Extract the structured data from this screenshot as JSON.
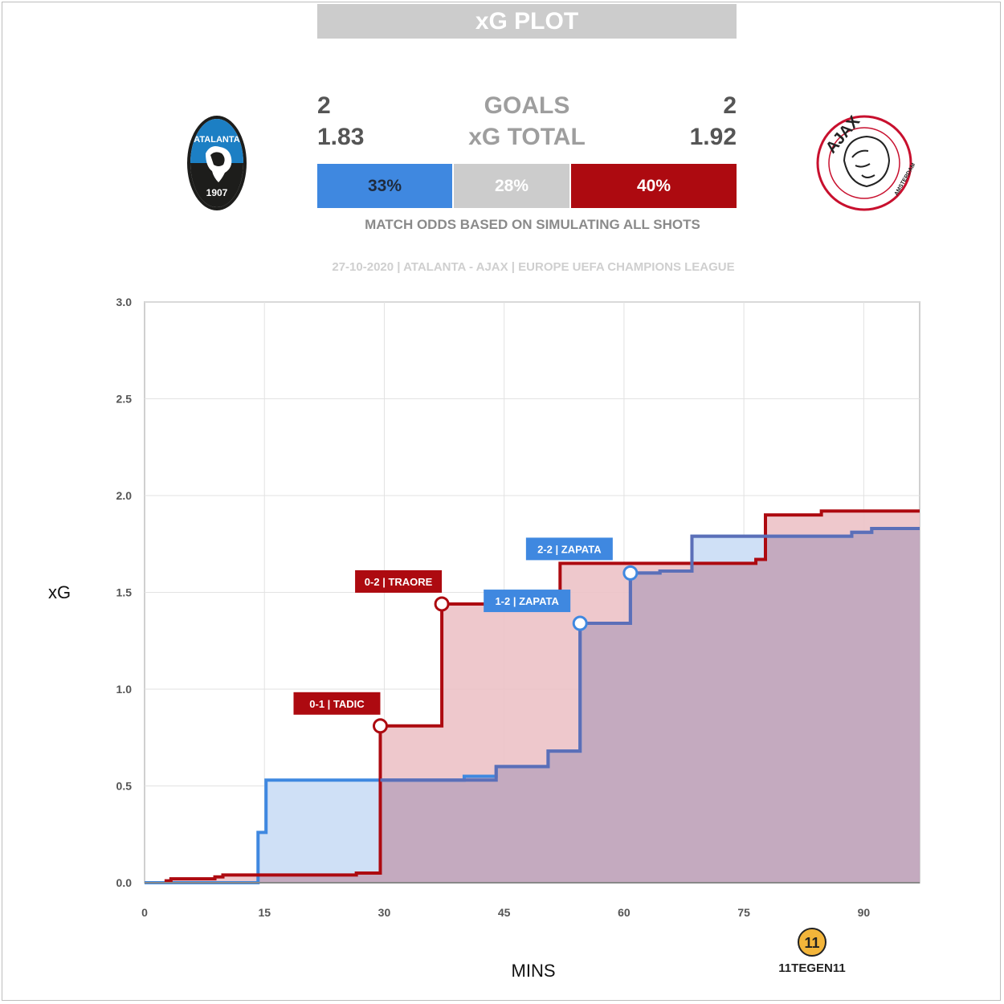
{
  "header": {
    "title": "xG PLOT"
  },
  "stats": {
    "home_goals": "2",
    "away_goals": "2",
    "goals_label": "GOALS",
    "home_xg": "1.83",
    "away_xg": "1.92",
    "xg_label": "xG TOTAL"
  },
  "odds": {
    "home": "33%",
    "draw": "28%",
    "away": "40%",
    "caption": "MATCH ODDS BASED ON SIMULATING ALL SHOTS"
  },
  "match_info": "27-10-2020 | ATALANTA - AJAX | EUROPE UEFA CHAMPIONS LEAGUE",
  "teams": {
    "home": {
      "name": "ATALANTA",
      "crest_text": "ATALANTA",
      "crest_year": "1907",
      "color": "#3f88e0"
    },
    "away": {
      "name": "AJAX",
      "crest_text": "AJAX",
      "crest_sub": "AMSTERDAM",
      "color": "#ad0a10"
    }
  },
  "brand": {
    "text": "11TEGEN11",
    "mark": "11"
  },
  "chart_data": {
    "type": "line",
    "title": "",
    "xlabel": "MINS",
    "ylabel": "xG",
    "xlim": [
      0,
      97
    ],
    "ylim": [
      0,
      3.0
    ],
    "x_ticks": [
      0,
      15,
      30,
      45,
      60,
      75,
      90
    ],
    "y_ticks": [
      0.0,
      0.5,
      1.0,
      1.5,
      2.0,
      2.5,
      3.0
    ],
    "y_tick_labels": [
      "0.0",
      "0.5",
      "1.0",
      "1.5",
      "2.0",
      "2.5",
      "3.0"
    ],
    "grid": true,
    "series": [
      {
        "team": "home",
        "color": "#3f88e0",
        "lineColor": "#3f88e0",
        "lateColor": "#5b6fb8",
        "fill": "#cfe0f6",
        "steps": [
          [
            0,
            0.0
          ],
          [
            14.2,
            0.26
          ],
          [
            15.2,
            0.53
          ],
          [
            40,
            0.55
          ],
          [
            44,
            0.6
          ],
          [
            50.5,
            0.68
          ],
          [
            54.5,
            1.34
          ],
          [
            60.8,
            1.6
          ],
          [
            64.5,
            1.61
          ],
          [
            68.5,
            1.79
          ],
          [
            88.5,
            1.81
          ],
          [
            91,
            1.83
          ],
          [
            97,
            1.83
          ]
        ]
      },
      {
        "team": "away",
        "color": "#ad0a10",
        "lineColor": "#ad0a10",
        "fill": "#ecc2c6",
        "steps": [
          [
            2.5,
            0.01
          ],
          [
            3.3,
            0.02
          ],
          [
            8.8,
            0.03
          ],
          [
            9.8,
            0.04
          ],
          [
            26.5,
            0.05
          ],
          [
            29.5,
            0.81
          ],
          [
            37.2,
            1.44
          ],
          [
            52,
            1.65
          ],
          [
            76.5,
            1.67
          ],
          [
            77.7,
            1.9
          ],
          [
            84.7,
            1.92
          ],
          [
            97,
            1.92
          ]
        ]
      }
    ],
    "goals": [
      {
        "team": "away",
        "minute": 29.5,
        "xg": 0.81,
        "label": "0-1 | TADIC"
      },
      {
        "team": "away",
        "minute": 37.2,
        "xg": 1.44,
        "label": "0-2 | TRAORE"
      },
      {
        "team": "home",
        "minute": 54.5,
        "xg": 1.34,
        "label": "1-2 | ZAPATA"
      },
      {
        "team": "home",
        "minute": 60.8,
        "xg": 1.6,
        "label": "2-2 | ZAPATA"
      }
    ]
  }
}
